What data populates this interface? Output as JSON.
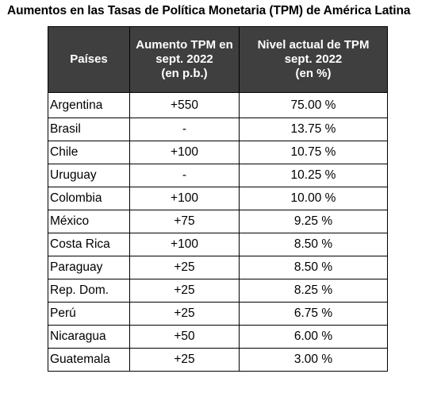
{
  "title": "Aumentos en las Tasas de Política Monetaria (TPM) de América Latina",
  "table": {
    "headers": {
      "country": "Países",
      "increase": [
        "Aumento TPM en",
        "sept. 2022",
        "(en p.b.)"
      ],
      "current": [
        "Nivel actual de TPM",
        "sept. 2022",
        "(en %)"
      ]
    },
    "rows": [
      {
        "country": "Argentina",
        "increase": "+550",
        "current": "75.00 %"
      },
      {
        "country": "Brasil",
        "increase": "-",
        "current": "13.75 %"
      },
      {
        "country": "Chile",
        "increase": "+100",
        "current": "10.75 %"
      },
      {
        "country": "Uruguay",
        "increase": "-",
        "current": "10.25 %"
      },
      {
        "country": "Colombia",
        "increase": "+100",
        "current": "10.00 %"
      },
      {
        "country": "México",
        "increase": "+75",
        "current": "9.25 %"
      },
      {
        "country": "Costa Rica",
        "increase": "+100",
        "current": "8.50 %"
      },
      {
        "country": "Paraguay",
        "increase": "+25",
        "current": "8.50 %"
      },
      {
        "country": "Rep. Dom.",
        "increase": "+25",
        "current": "8.25 %"
      },
      {
        "country": "Perú",
        "increase": "+25",
        "current": "6.75 %"
      },
      {
        "country": "Nicaragua",
        "increase": "+50",
        "current": "6.00 %"
      },
      {
        "country": "Guatemala",
        "increase": "+25",
        "current": "3.00 %"
      }
    ]
  },
  "colors": {
    "header_background": "#3f3f3f",
    "header_text": "#ffffff",
    "border": "#000000"
  }
}
